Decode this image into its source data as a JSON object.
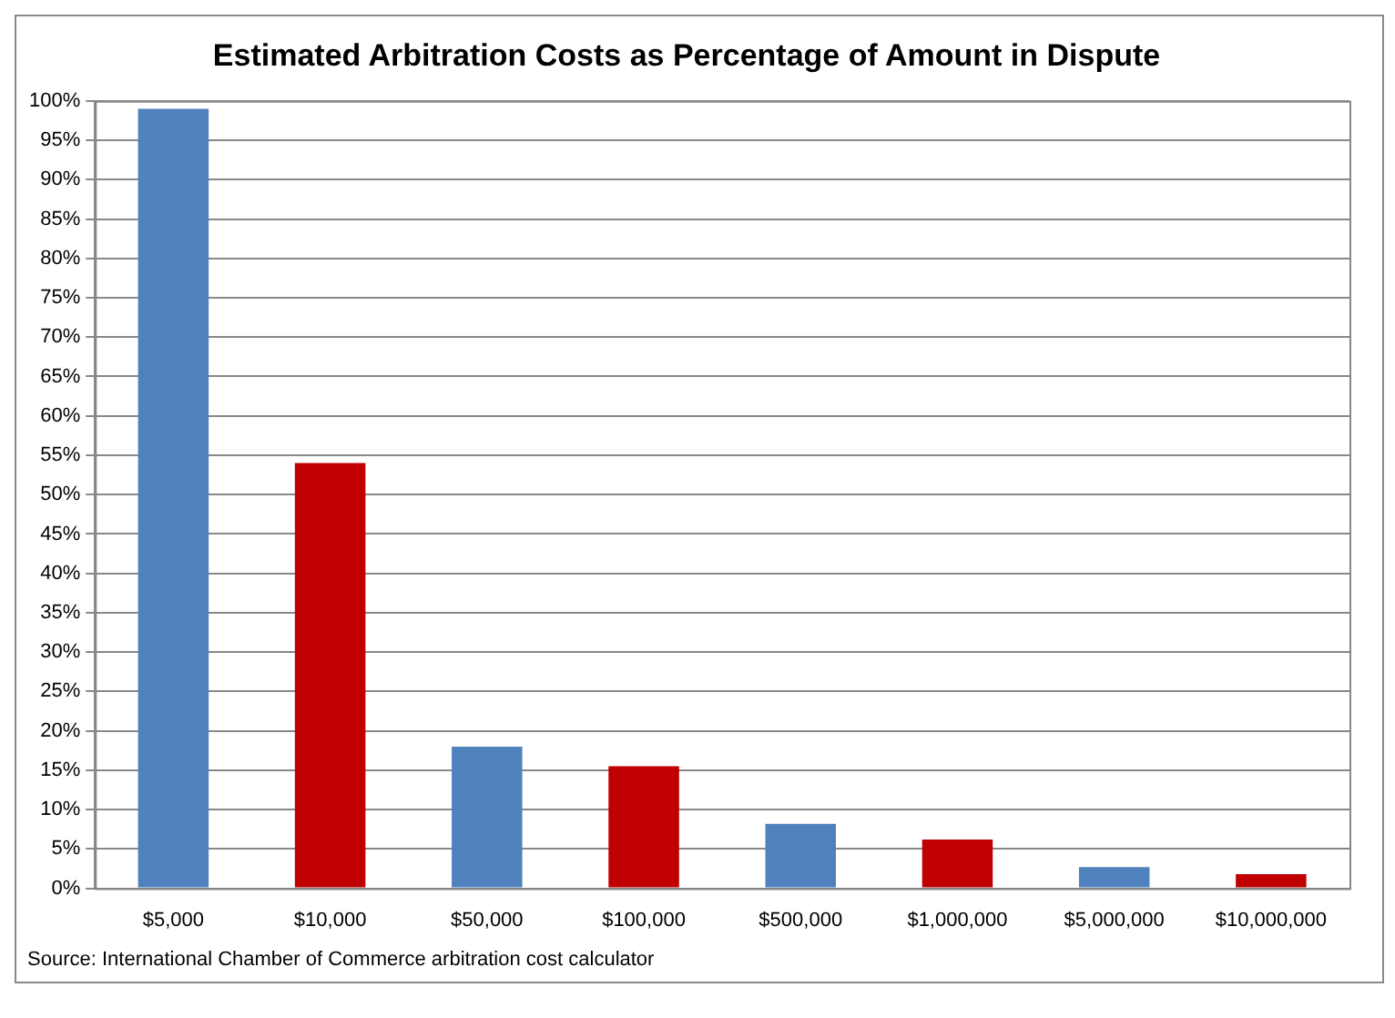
{
  "chart_data": {
    "type": "bar",
    "title": "Estimated Arbitration Costs as Percentage of Amount in Dispute",
    "categories": [
      "$5,000",
      "$10,000",
      "$50,000",
      "$100,000",
      "$500,000",
      "$1,000,000",
      "$5,000,000",
      "$10,000,000"
    ],
    "values": [
      99,
      54,
      18,
      15.5,
      8.2,
      6.2,
      2.7,
      1.8
    ],
    "colors": [
      "#4f81bd",
      "#c00000",
      "#4f81bd",
      "#c00000",
      "#4f81bd",
      "#c00000",
      "#4f81bd",
      "#c00000"
    ],
    "ylim": [
      0,
      100
    ],
    "yticks": [
      {
        "value": 0,
        "label": "0%"
      },
      {
        "value": 5,
        "label": "5%"
      },
      {
        "value": 10,
        "label": "10%"
      },
      {
        "value": 15,
        "label": "15%"
      },
      {
        "value": 20,
        "label": "20%"
      },
      {
        "value": 25,
        "label": "25%"
      },
      {
        "value": 30,
        "label": "30%"
      },
      {
        "value": 35,
        "label": "35%"
      },
      {
        "value": 40,
        "label": "40%"
      },
      {
        "value": 45,
        "label": "45%"
      },
      {
        "value": 50,
        "label": "50%"
      },
      {
        "value": 55,
        "label": "55%"
      },
      {
        "value": 60,
        "label": "60%"
      },
      {
        "value": 65,
        "label": "65%"
      },
      {
        "value": 70,
        "label": "70%"
      },
      {
        "value": 75,
        "label": "75%"
      },
      {
        "value": 80,
        "label": "80%"
      },
      {
        "value": 85,
        "label": "85%"
      },
      {
        "value": 90,
        "label": "90%"
      },
      {
        "value": 95,
        "label": "95%"
      },
      {
        "value": 100,
        "label": "100%"
      }
    ],
    "grid": "y",
    "legend": false,
    "annotations": [
      "Source: International Chamber of Commerce arbitration cost calculator"
    ]
  }
}
